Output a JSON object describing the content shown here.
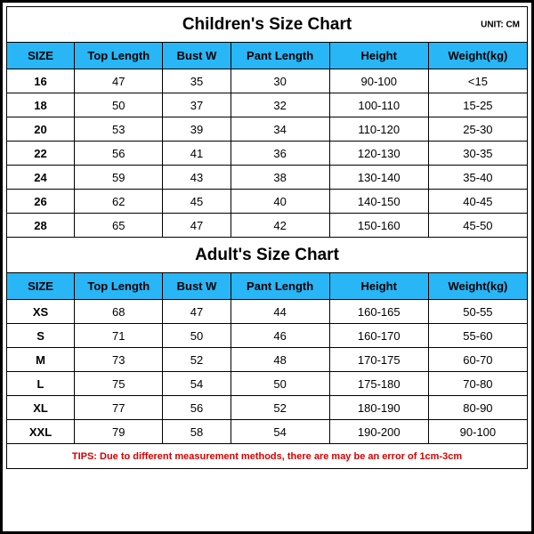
{
  "unit_label": "UNIT: CM",
  "children": {
    "title": "Children's Size Chart",
    "columns": [
      "SIZE",
      "Top Length",
      "Bust W",
      "Pant Length",
      "Height",
      "Weight(kg)"
    ],
    "rows": [
      [
        "16",
        "47",
        "35",
        "30",
        "90-100",
        "<15"
      ],
      [
        "18",
        "50",
        "37",
        "32",
        "100-110",
        "15-25"
      ],
      [
        "20",
        "53",
        "39",
        "34",
        "110-120",
        "25-30"
      ],
      [
        "22",
        "56",
        "41",
        "36",
        "120-130",
        "30-35"
      ],
      [
        "24",
        "59",
        "43",
        "38",
        "130-140",
        "35-40"
      ],
      [
        "26",
        "62",
        "45",
        "40",
        "140-150",
        "40-45"
      ],
      [
        "28",
        "65",
        "47",
        "42",
        "150-160",
        "45-50"
      ]
    ]
  },
  "adult": {
    "title": "Adult's Size Chart",
    "columns": [
      "SIZE",
      "Top Length",
      "Bust W",
      "Pant Length",
      "Height",
      "Weight(kg)"
    ],
    "rows": [
      [
        "XS",
        "68",
        "47",
        "44",
        "160-165",
        "50-55"
      ],
      [
        "S",
        "71",
        "50",
        "46",
        "160-170",
        "55-60"
      ],
      [
        "M",
        "73",
        "52",
        "48",
        "170-175",
        "60-70"
      ],
      [
        "L",
        "75",
        "54",
        "50",
        "175-180",
        "70-80"
      ],
      [
        "XL",
        "77",
        "56",
        "52",
        "180-190",
        "80-90"
      ],
      [
        "XXL",
        "79",
        "58",
        "54",
        "190-200",
        "90-100"
      ]
    ]
  },
  "tips": "TIPS: Due to different measurement methods, there are may be an error of 1cm-3cm",
  "colors": {
    "header_bg": "#29b6f6",
    "border": "#000000",
    "tips_text": "#d60000",
    "background": "#ffffff"
  }
}
